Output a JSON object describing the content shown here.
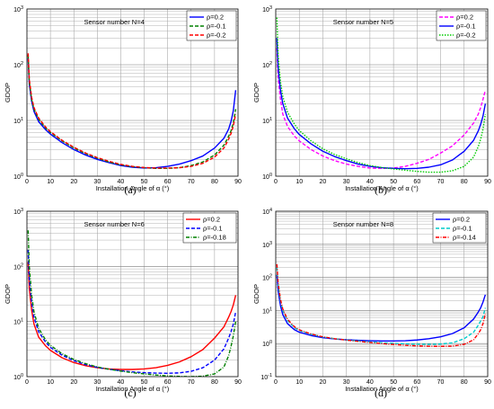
{
  "chart_data": [
    {
      "type": "line",
      "caption": "(a)",
      "annotation": "Sensor number N=4",
      "xlabel": "Installation Angle of α (°)",
      "ylabel": "GDOP",
      "xlim": [
        0,
        90
      ],
      "ylim_exp": [
        0,
        3
      ],
      "y_scale": "log",
      "x_ticks": [
        "0",
        "10",
        "20",
        "30",
        "40",
        "50",
        "60",
        "70",
        "80",
        "90"
      ],
      "y_tick_labels": [
        {
          "base": "10",
          "exp": "0"
        },
        {
          "base": "10",
          "exp": "1"
        },
        {
          "base": "10",
          "exp": "2"
        },
        {
          "base": "10",
          "exp": "3"
        }
      ],
      "grid": true,
      "legend": "top-right",
      "series": [
        {
          "name": "ρ=0.2",
          "color": "#0000ff",
          "dash": "",
          "x": [
            0.5,
            1,
            2,
            3,
            5,
            8,
            10,
            15,
            20,
            25,
            30,
            35,
            40,
            45,
            50,
            55,
            60,
            65,
            70,
            75,
            80,
            84,
            86,
            87,
            88,
            89
          ],
          "y": [
            130,
            45,
            22,
            14.5,
            9.5,
            6.8,
            5.7,
            4.0,
            3.0,
            2.4,
            2.0,
            1.75,
            1.55,
            1.45,
            1.4,
            1.42,
            1.5,
            1.65,
            1.9,
            2.3,
            3.2,
            4.8,
            7,
            9.5,
            15,
            35
          ]
        },
        {
          "name": "ρ=-0.1",
          "color": "#008000",
          "dash": "4,2",
          "x": [
            0.5,
            1,
            2,
            3,
            5,
            8,
            10,
            15,
            20,
            25,
            30,
            35,
            40,
            45,
            50,
            55,
            60,
            65,
            70,
            75,
            80,
            84,
            86,
            87,
            88,
            89
          ],
          "y": [
            150,
            50,
            24,
            16,
            10.5,
            7.3,
            6.1,
            4.3,
            3.2,
            2.55,
            2.1,
            1.8,
            1.6,
            1.48,
            1.42,
            1.38,
            1.38,
            1.42,
            1.55,
            1.8,
            2.4,
            3.6,
            5.2,
            6.5,
            9,
            16
          ]
        },
        {
          "name": "ρ=-0.2",
          "color": "#ff0000",
          "dash": "4,2",
          "x": [
            0.5,
            1,
            2,
            3,
            5,
            8,
            10,
            15,
            20,
            25,
            30,
            35,
            40,
            45,
            50,
            55,
            60,
            65,
            70,
            75,
            80,
            84,
            86,
            87,
            88,
            89
          ],
          "y": [
            160,
            55,
            26,
            17,
            11,
            7.6,
            6.3,
            4.4,
            3.3,
            2.6,
            2.15,
            1.85,
            1.63,
            1.5,
            1.43,
            1.4,
            1.4,
            1.42,
            1.5,
            1.7,
            2.2,
            3.2,
            4.6,
            5.8,
            8,
            13
          ]
        }
      ]
    },
    {
      "type": "line",
      "caption": "(b)",
      "annotation": "Sensor number N=5",
      "xlabel": "Installation Angle of α (°)",
      "ylabel": "GDOP",
      "xlim": [
        0,
        90
      ],
      "ylim_exp": [
        0,
        3
      ],
      "y_scale": "log",
      "x_ticks": [
        "0",
        "10",
        "20",
        "30",
        "40",
        "50",
        "60",
        "70",
        "80",
        "90"
      ],
      "y_tick_labels": [
        {
          "base": "10",
          "exp": "0"
        },
        {
          "base": "10",
          "exp": "1"
        },
        {
          "base": "10",
          "exp": "2"
        },
        {
          "base": "10",
          "exp": "3"
        }
      ],
      "grid": true,
      "legend": "top-right",
      "series": [
        {
          "name": "ρ=0.2",
          "color": "#ff00ff",
          "dash": "4,2",
          "x": [
            0.5,
            1,
            2,
            3,
            5,
            8,
            10,
            15,
            20,
            25,
            30,
            35,
            40,
            45,
            50,
            55,
            60,
            65,
            70,
            75,
            80,
            84,
            86,
            87,
            88,
            89
          ],
          "y": [
            200,
            60,
            24,
            13,
            7.8,
            5.2,
            4.3,
            3.0,
            2.3,
            1.9,
            1.65,
            1.5,
            1.4,
            1.38,
            1.4,
            1.5,
            1.7,
            2.0,
            2.6,
            3.5,
            5.5,
            9,
            13,
            17,
            24,
            35
          ]
        },
        {
          "name": "ρ=-0.1",
          "color": "#0000ff",
          "dash": "",
          "x": [
            0.5,
            1,
            2,
            3,
            5,
            8,
            10,
            15,
            20,
            25,
            30,
            35,
            40,
            45,
            50,
            55,
            60,
            65,
            70,
            75,
            80,
            84,
            86,
            87,
            88,
            89
          ],
          "y": [
            300,
            90,
            35,
            20,
            11,
            7.0,
            5.6,
            3.8,
            2.8,
            2.25,
            1.9,
            1.65,
            1.5,
            1.42,
            1.38,
            1.36,
            1.38,
            1.45,
            1.6,
            1.95,
            2.8,
            4.4,
            6.5,
            8.5,
            12,
            20
          ]
        },
        {
          "name": "ρ=-0.2",
          "color": "#00cc00",
          "dash": "1.5,1.5",
          "x": [
            0.5,
            1,
            2,
            3,
            5,
            8,
            10,
            15,
            20,
            25,
            30,
            35,
            40,
            45,
            50,
            55,
            60,
            65,
            70,
            75,
            80,
            84,
            86,
            87,
            88,
            89
          ],
          "y": [
            700,
            150,
            50,
            27,
            14,
            8.5,
            6.6,
            4.3,
            3.1,
            2.45,
            2.05,
            1.75,
            1.55,
            1.43,
            1.35,
            1.28,
            1.22,
            1.18,
            1.18,
            1.25,
            1.5,
            2.2,
            3.4,
            4.6,
            7,
            13
          ]
        }
      ]
    },
    {
      "type": "line",
      "caption": "(c)",
      "annotation": "Sensor number N=6",
      "xlabel": "Installation Angle of α (°)",
      "ylabel": "GDOP",
      "xlim": [
        0,
        90
      ],
      "ylim_exp": [
        0,
        3
      ],
      "y_scale": "log",
      "x_ticks": [
        "0",
        "10",
        "20",
        "30",
        "40",
        "50",
        "60",
        "70",
        "80",
        "90"
      ],
      "y_tick_labels": [
        {
          "base": "10",
          "exp": "0"
        },
        {
          "base": "10",
          "exp": "1"
        },
        {
          "base": "10",
          "exp": "2"
        },
        {
          "base": "10",
          "exp": "3"
        }
      ],
      "grid": true,
      "legend": "top-right",
      "series": [
        {
          "name": "ρ=0.2",
          "color": "#ff0000",
          "dash": "",
          "x": [
            0.5,
            1,
            2,
            3,
            5,
            8,
            10,
            15,
            20,
            25,
            30,
            35,
            40,
            45,
            50,
            55,
            60,
            65,
            70,
            75,
            80,
            84,
            86,
            87,
            88,
            89
          ],
          "y": [
            120,
            40,
            16,
            9,
            5.2,
            3.6,
            3.0,
            2.2,
            1.8,
            1.58,
            1.45,
            1.38,
            1.35,
            1.35,
            1.38,
            1.45,
            1.6,
            1.85,
            2.3,
            3.1,
            5.0,
            8,
            12,
            15,
            20,
            30
          ]
        },
        {
          "name": "ρ=-0.1",
          "color": "#0000ff",
          "dash": "4,2",
          "x": [
            0.5,
            1,
            2,
            3,
            5,
            8,
            10,
            15,
            20,
            25,
            30,
            35,
            40,
            45,
            50,
            55,
            60,
            65,
            70,
            75,
            80,
            84,
            86,
            87,
            88,
            89
          ],
          "y": [
            200,
            60,
            22,
            12,
            6.5,
            4.2,
            3.4,
            2.45,
            1.95,
            1.65,
            1.47,
            1.36,
            1.28,
            1.22,
            1.18,
            1.16,
            1.15,
            1.17,
            1.25,
            1.45,
            2.0,
            3.2,
            5,
            6.5,
            9,
            15
          ]
        },
        {
          "name": "ρ=-0.18",
          "color": "#008000",
          "dash": "4,1.5,1,1.5",
          "x": [
            0.5,
            1,
            2,
            3,
            5,
            8,
            10,
            15,
            20,
            25,
            30,
            35,
            40,
            45,
            50,
            55,
            60,
            65,
            70,
            75,
            80,
            84,
            86,
            87,
            88,
            89
          ],
          "y": [
            450,
            100,
            30,
            15,
            7.5,
            4.6,
            3.7,
            2.6,
            2.05,
            1.72,
            1.5,
            1.36,
            1.26,
            1.18,
            1.12,
            1.07,
            1.03,
            1.01,
            1.0,
            1.02,
            1.12,
            1.5,
            2.4,
            3.5,
            5.5,
            10
          ]
        }
      ]
    },
    {
      "type": "line",
      "caption": "(d)",
      "annotation": "Sensor number N=8",
      "xlabel": "Installation Angle of α (°)",
      "ylabel": "GDOP",
      "xlim": [
        0,
        90
      ],
      "ylim_exp": [
        -1,
        4
      ],
      "y_scale": "log",
      "x_ticks": [
        "0",
        "10",
        "20",
        "30",
        "40",
        "50",
        "60",
        "70",
        "80",
        "90"
      ],
      "y_tick_labels": [
        {
          "base": "10",
          "exp": "-1"
        },
        {
          "base": "10",
          "exp": "0"
        },
        {
          "base": "10",
          "exp": "1"
        },
        {
          "base": "10",
          "exp": "2"
        },
        {
          "base": "10",
          "exp": "3"
        },
        {
          "base": "10",
          "exp": "4"
        }
      ],
      "grid": true,
      "legend": "top-right",
      "series": [
        {
          "name": "ρ=0.2",
          "color": "#0000ff",
          "dash": "",
          "x": [
            0.5,
            1,
            2,
            3,
            5,
            8,
            10,
            15,
            20,
            25,
            30,
            35,
            40,
            45,
            50,
            55,
            60,
            65,
            70,
            75,
            80,
            84,
            86,
            87,
            88,
            89
          ],
          "y": [
            120,
            40,
            14,
            7.5,
            4.0,
            2.6,
            2.2,
            1.75,
            1.5,
            1.38,
            1.3,
            1.25,
            1.22,
            1.2,
            1.2,
            1.22,
            1.28,
            1.4,
            1.6,
            2.0,
            3.0,
            5.5,
            9,
            12,
            18,
            30
          ]
        },
        {
          "name": "ρ=-0.1",
          "color": "#00cccc",
          "dash": "4,2",
          "x": [
            0.5,
            1,
            2,
            3,
            5,
            8,
            10,
            15,
            20,
            25,
            30,
            35,
            40,
            45,
            50,
            55,
            60,
            65,
            70,
            75,
            80,
            84,
            86,
            87,
            88,
            89
          ],
          "y": [
            200,
            60,
            20,
            10,
            5.0,
            3.0,
            2.5,
            1.9,
            1.58,
            1.4,
            1.28,
            1.2,
            1.12,
            1.06,
            1.02,
            0.98,
            0.96,
            0.95,
            0.97,
            1.05,
            1.4,
            2.2,
            3.6,
            4.8,
            6.5,
            12
          ]
        },
        {
          "name": "ρ=-0.14",
          "color": "#ff0000",
          "dash": "4,1.5,1,1.5",
          "x": [
            0.5,
            1,
            2,
            3,
            5,
            8,
            10,
            15,
            20,
            25,
            30,
            35,
            40,
            45,
            50,
            55,
            60,
            65,
            70,
            75,
            80,
            84,
            86,
            87,
            88,
            89
          ],
          "y": [
            250,
            70,
            22,
            11,
            5.4,
            3.2,
            2.6,
            1.95,
            1.6,
            1.4,
            1.27,
            1.17,
            1.08,
            1.0,
            0.94,
            0.89,
            0.85,
            0.83,
            0.82,
            0.84,
            0.95,
            1.3,
            2.0,
            2.6,
            4.0,
            8
          ]
        }
      ]
    }
  ]
}
